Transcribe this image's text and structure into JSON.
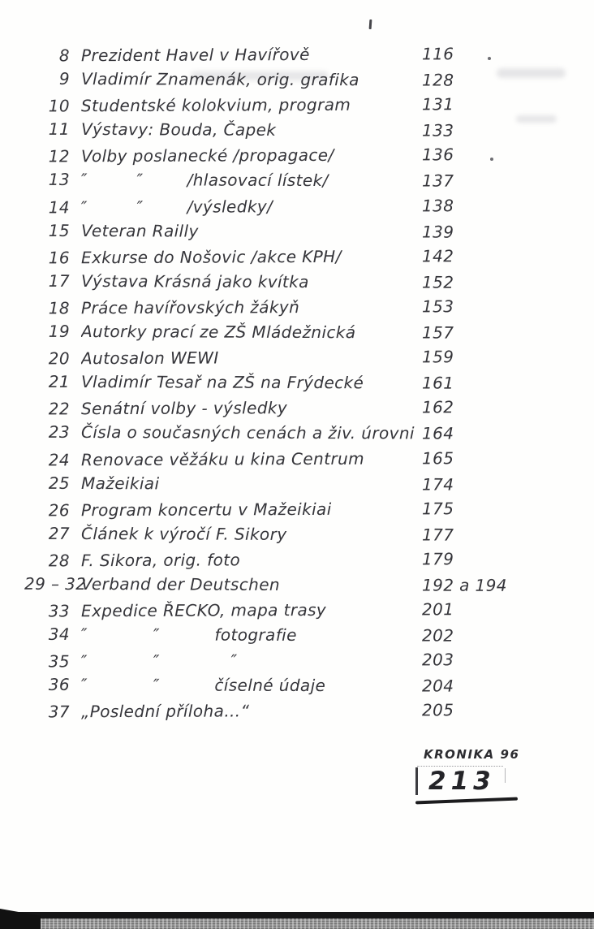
{
  "page": {
    "kind": "scanned handwritten chronicle index page",
    "language": "cs"
  },
  "toc": {
    "entries": [
      {
        "no": "8",
        "title": "Prezident Havel v Havířově",
        "page": "116"
      },
      {
        "no": "9",
        "title": "Vladimír Znamenák, orig. grafika",
        "page": "128"
      },
      {
        "no": "10",
        "title": "Studentské kolokvium, program",
        "page": "131"
      },
      {
        "no": "11",
        "title": "Výstavy: Bouda, Čapek",
        "page": "133"
      },
      {
        "no": "12",
        "title": "Volby poslanecké /propagace/",
        "page": "136"
      },
      {
        "no": "13",
        "title": "″         ″        /hlasovací lístek/",
        "page": "137"
      },
      {
        "no": "14",
        "title": "″         ″        /výsledky/",
        "page": "138"
      },
      {
        "no": "15",
        "title": "Veteran Railly",
        "page": "139"
      },
      {
        "no": "16",
        "title": "Exkurse do Nošovic /akce KPH/",
        "page": "142"
      },
      {
        "no": "17",
        "title": "Výstava Krásná jako kvítka",
        "page": "152"
      },
      {
        "no": "18",
        "title": "Práce havířovských žákyň",
        "page": "153"
      },
      {
        "no": "19",
        "title": "Autorky prací ze ZŠ Mládežnická",
        "page": "157"
      },
      {
        "no": "20",
        "title": "Autosalon WEWI",
        "page": "159"
      },
      {
        "no": "21",
        "title": "Vladimír Tesař na ZŠ na Frýdecké",
        "page": "161"
      },
      {
        "no": "22",
        "title": "Senátní volby - výsledky",
        "page": "162"
      },
      {
        "no": "23",
        "title": "Čísla o současných cenách a živ. úrovni",
        "page": "164"
      },
      {
        "no": "24",
        "title": "Renovace věžáku u kina Centrum",
        "page": "165"
      },
      {
        "no": "25",
        "title": "Mažeikiai",
        "page": "174"
      },
      {
        "no": "26",
        "title": "Program koncertu v Mažeikiai",
        "page": "175"
      },
      {
        "no": "27",
        "title": "Článek k výročí F. Sikory",
        "page": "177"
      },
      {
        "no": "28",
        "title": "F. Sikora, orig. foto",
        "page": "179"
      },
      {
        "no": "29 – 32",
        "title": "Verband der Deutschen",
        "page": "192 a 194"
      },
      {
        "no": "33",
        "title": "Expedice ŘECKO, mapa trasy",
        "page": "201"
      },
      {
        "no": "34",
        "title": "″            ″          fotografie",
        "page": "202"
      },
      {
        "no": "35",
        "title": "″            ″             ″",
        "page": "203"
      },
      {
        "no": "36",
        "title": "″            ″          číselné údaje",
        "page": "204"
      },
      {
        "no": "37",
        "title": "„Poslední příloha…“",
        "page": "205"
      }
    ]
  },
  "stamp": {
    "label": "KRONIKA 96",
    "number": "213"
  },
  "colors": {
    "ink": "#35353a",
    "paper": "#fefefd",
    "scan_edge": "#161617",
    "fabric": "#969696"
  }
}
